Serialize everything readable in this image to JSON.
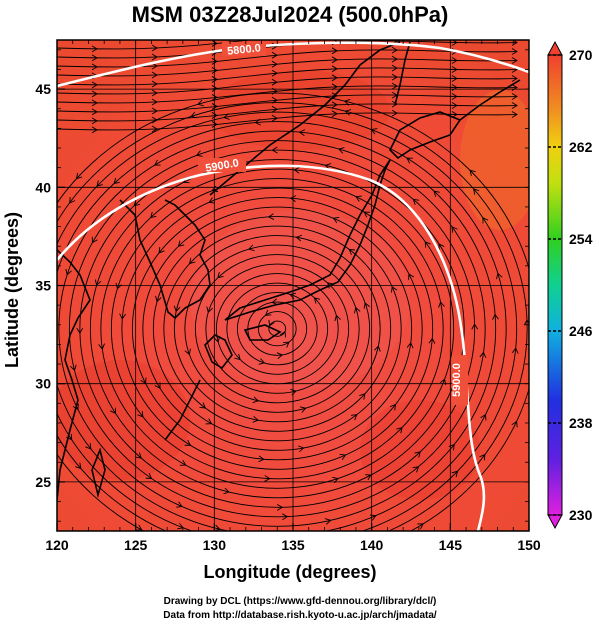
{
  "title": "MSM 03Z28Jul2024 (500.0hPa)",
  "x_axis": {
    "label": "Longitude (degrees)",
    "ticks": [
      "120",
      "125",
      "130",
      "135",
      "140",
      "145",
      "150"
    ]
  },
  "y_axis": {
    "label": "Latitude  (degrees)",
    "ticks": [
      "25",
      "30",
      "35",
      "40",
      "45"
    ]
  },
  "colorbar": {
    "ticks": [
      "270",
      "262",
      "254",
      "246",
      "238",
      "230"
    ],
    "min": 230,
    "max": 270,
    "colors": [
      "#e020e0",
      "#8020e0",
      "#2020e0",
      "#1080f0",
      "#10c0d0",
      "#10d080",
      "#20d020",
      "#a0e010",
      "#f0e010",
      "#f0a010",
      "#f06020",
      "#f03030"
    ]
  },
  "contours": {
    "label_5800": "5800.0",
    "label_5900": "5900.0",
    "label_5900_east": "5900.0"
  },
  "credits": {
    "line1": "Drawing by DCL (https://www.gfd-dennou.org/library/dcl/)",
    "line2": "Data from http://database.rish.kyoto-u.ac.jp/arch/jmadata/"
  },
  "map": {
    "lon_range": [
      120,
      150
    ],
    "lat_range": [
      22.5,
      47.5
    ],
    "vortex_center": {
      "lon": 134.0,
      "lat": 32.8
    },
    "grid_lons": [
      125,
      130,
      135,
      140,
      145
    ],
    "grid_lats": [
      25,
      30,
      35,
      40,
      45
    ]
  }
}
